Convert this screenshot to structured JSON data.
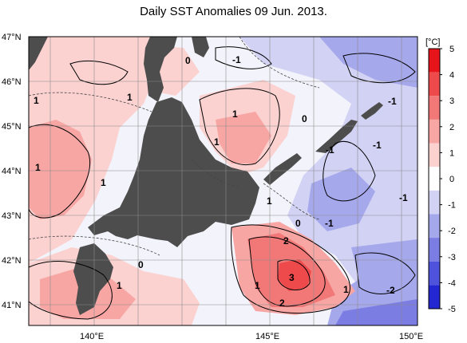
{
  "title": "Daily SST Anomalies 09 Jun. 2013.",
  "lat_ticks": [
    "47°N",
    "46°N",
    "45°N",
    "44°N",
    "43°N",
    "42°N",
    "41°N"
  ],
  "lon_ticks": [
    "140°E",
    "145°E",
    "150°E"
  ],
  "colorbar": {
    "unit": "[°C]",
    "ticks": [
      "5",
      "4",
      "3",
      "2",
      "1",
      "0",
      "-1",
      "-2",
      "-3",
      "-4",
      "-5"
    ],
    "colors": [
      "#e8141b",
      "#ee4a4c",
      "#f27877",
      "#f7a6a4",
      "#fbd2d0",
      "#ffffff",
      "#d2d3f4",
      "#a6a8ec",
      "#7b7de3",
      "#4f52da",
      "#2327d1"
    ]
  },
  "contour_labels": [
    {
      "text": "0"
    },
    {
      "text": "-1"
    },
    {
      "text": "1"
    },
    {
      "text": "1"
    },
    {
      "text": "-1"
    },
    {
      "text": "1"
    },
    {
      "text": "0"
    },
    {
      "text": "1"
    },
    {
      "text": "-1"
    },
    {
      "text": "-1"
    },
    {
      "text": "1"
    },
    {
      "text": "1"
    },
    {
      "text": "-1"
    },
    {
      "text": "0"
    },
    {
      "text": "-1"
    },
    {
      "text": "2"
    },
    {
      "text": "0"
    },
    {
      "text": "3"
    },
    {
      "text": "1"
    },
    {
      "text": "1"
    },
    {
      "text": "2"
    },
    {
      "text": "1"
    },
    {
      "text": "-2"
    },
    {
      "text": "1"
    }
  ],
  "colors": {
    "land": "#4d4d4d",
    "background": "#ffffff"
  }
}
